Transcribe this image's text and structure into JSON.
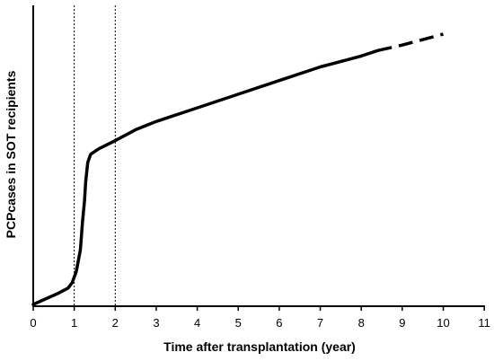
{
  "chart_data": {
    "type": "line",
    "title": "",
    "xlabel": "Time after transplantation (year)",
    "ylabel": "PCPcases in SOT recipients",
    "xlim": [
      0,
      11
    ],
    "x_ticks": [
      "0",
      "1",
      "2",
      "3",
      "4",
      "5",
      "6",
      "7",
      "8",
      "9",
      "10",
      "11"
    ],
    "y_ticks": [],
    "grid": false,
    "legend": "none",
    "reference_lines_x": [
      1,
      2
    ],
    "series": [
      {
        "style": "solid",
        "color": "#000000",
        "points": [
          [
            0,
            0.0
          ],
          [
            0.3,
            0.02
          ],
          [
            0.6,
            0.04
          ],
          [
            0.85,
            0.06
          ],
          [
            0.95,
            0.08
          ],
          [
            1.05,
            0.12
          ],
          [
            1.15,
            0.2
          ],
          [
            1.2,
            0.3
          ],
          [
            1.25,
            0.38
          ],
          [
            1.28,
            0.45
          ],
          [
            1.33,
            0.52
          ],
          [
            1.4,
            0.55
          ],
          [
            1.6,
            0.57
          ],
          [
            2.0,
            0.6
          ],
          [
            2.5,
            0.64
          ],
          [
            3.0,
            0.67
          ],
          [
            4.0,
            0.72
          ],
          [
            5.0,
            0.77
          ],
          [
            6.0,
            0.82
          ],
          [
            7.0,
            0.87
          ],
          [
            8.0,
            0.91
          ],
          [
            8.4,
            0.93
          ]
        ]
      },
      {
        "style": "dashed",
        "color": "#000000",
        "points": [
          [
            8.4,
            0.93
          ],
          [
            9.0,
            0.95
          ],
          [
            10.0,
            0.99
          ]
        ]
      }
    ]
  }
}
